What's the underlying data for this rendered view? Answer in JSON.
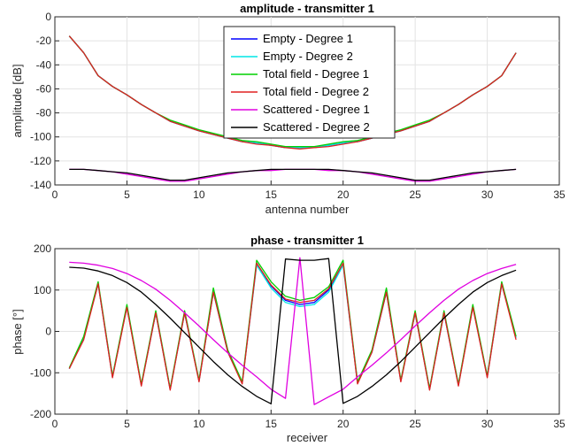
{
  "chart_data": [
    {
      "type": "line",
      "title": "amplitude - transmitter 1",
      "xlabel": "antenna number",
      "ylabel": "amplitude [dB]",
      "xlim": [
        0,
        35
      ],
      "ylim": [
        -140,
        0
      ],
      "xticks": [
        0,
        5,
        10,
        15,
        20,
        25,
        30,
        35
      ],
      "yticks": [
        0,
        -20,
        -40,
        -60,
        -80,
        -100,
        -120,
        -140
      ],
      "grid": true,
      "legend_position": "top-center",
      "x": [
        1,
        2,
        3,
        4,
        5,
        6,
        7,
        8,
        9,
        10,
        11,
        12,
        13,
        14,
        15,
        16,
        17,
        18,
        19,
        20,
        21,
        22,
        23,
        24,
        25,
        26,
        27,
        28,
        29,
        30,
        31,
        32
      ],
      "series": [
        {
          "name": "Empty - Degree 1",
          "color": "#0000ff",
          "values": [
            -16,
            -30,
            -49,
            -58,
            -65,
            -73,
            -80,
            -87,
            -91,
            -95,
            -98,
            -101,
            -104,
            -105,
            -107,
            -109,
            -109,
            -109,
            -107,
            -105,
            -104,
            -101,
            -98,
            -95,
            -91,
            -87,
            -80,
            -73,
            -65,
            -58,
            -49,
            -30
          ]
        },
        {
          "name": "Empty - Degree 2",
          "color": "#00e5e5",
          "values": [
            -16,
            -30,
            -49,
            -58,
            -65,
            -73,
            -80,
            -87,
            -91,
            -95,
            -98,
            -101,
            -104,
            -105,
            -107,
            -109,
            -109,
            -109,
            -107,
            -105,
            -104,
            -101,
            -98,
            -95,
            -91,
            -87,
            -80,
            -73,
            -65,
            -58,
            -49,
            -30
          ]
        },
        {
          "name": "Total field - Degree 1",
          "color": "#00d000",
          "values": [
            -16,
            -30,
            -49,
            -58,
            -65,
            -73,
            -80,
            -86,
            -90,
            -94,
            -97,
            -100,
            -103,
            -104,
            -106,
            -108,
            -108,
            -108,
            -106,
            -104,
            -103,
            -100,
            -97,
            -94,
            -90,
            -86,
            -80,
            -73,
            -65,
            -58,
            -49,
            -30
          ]
        },
        {
          "name": "Total field - Degree 2",
          "color": "#e02020",
          "values": [
            -16,
            -30,
            -49,
            -58,
            -65,
            -73,
            -80,
            -87,
            -91,
            -95,
            -98,
            -101,
            -104,
            -106,
            -107,
            -109,
            -110,
            -109,
            -108,
            -106,
            -104,
            -101,
            -98,
            -95,
            -91,
            -87,
            -80,
            -73,
            -65,
            -58,
            -49,
            -30
          ]
        },
        {
          "name": "Scattered - Degree 1",
          "color": "#e000e0",
          "values": [
            -127,
            -127,
            -128,
            -129,
            -131,
            -133,
            -135,
            -137,
            -137,
            -135,
            -133,
            -131,
            -129,
            -128,
            -128,
            -127,
            -127,
            -127,
            -128,
            -128,
            -129,
            -131,
            -133,
            -135,
            -137,
            -137,
            -135,
            -133,
            -131,
            -129,
            -128,
            -127
          ]
        },
        {
          "name": "Scattered - Degree 2",
          "color": "#000000",
          "values": [
            -127,
            -127,
            -128,
            -129,
            -130,
            -132,
            -134,
            -136,
            -136,
            -134,
            -132,
            -130,
            -129,
            -128,
            -127,
            -127,
            -127,
            -127,
            -127,
            -128,
            -129,
            -130,
            -132,
            -134,
            -136,
            -136,
            -134,
            -132,
            -130,
            -129,
            -128,
            -127
          ]
        }
      ]
    },
    {
      "type": "line",
      "title": "phase - transmitter 1",
      "xlabel": "receiver",
      "ylabel": "phase [°]",
      "xlim": [
        0,
        35
      ],
      "ylim": [
        -200,
        200
      ],
      "xticks": [
        0,
        5,
        10,
        15,
        20,
        25,
        30,
        35
      ],
      "yticks": [
        200,
        100,
        0,
        -100,
        -200
      ],
      "grid": true,
      "x": [
        1,
        2,
        3,
        4,
        5,
        6,
        7,
        8,
        9,
        10,
        11,
        12,
        13,
        14,
        15,
        16,
        17,
        18,
        19,
        20,
        21,
        22,
        23,
        24,
        25,
        26,
        27,
        28,
        29,
        30,
        31,
        32
      ],
      "series": [
        {
          "name": "Empty - Degree 1",
          "color": "#0000ff",
          "values": [
            -90,
            -15,
            115,
            -110,
            60,
            -130,
            45,
            -140,
            45,
            -120,
            95,
            -50,
            -125,
            165,
            110,
            75,
            65,
            70,
            100,
            165,
            -125,
            -50,
            95,
            -120,
            45,
            -140,
            45,
            -130,
            60,
            -110,
            115,
            -15
          ]
        },
        {
          "name": "Empty - Degree 2",
          "color": "#00e5e5",
          "values": [
            -90,
            -15,
            115,
            -110,
            60,
            -130,
            45,
            -140,
            45,
            -120,
            95,
            -50,
            -125,
            160,
            105,
            70,
            60,
            65,
            95,
            160,
            -125,
            -50,
            95,
            -120,
            45,
            -140,
            45,
            -130,
            60,
            -110,
            115,
            -15
          ]
        },
        {
          "name": "Total field - Degree 1",
          "color": "#00d000",
          "values": [
            -88,
            -12,
            120,
            -108,
            65,
            -128,
            50,
            -138,
            50,
            -118,
            105,
            -45,
            -122,
            172,
            120,
            85,
            75,
            82,
            108,
            172,
            -122,
            -45,
            105,
            -118,
            50,
            -138,
            50,
            -128,
            65,
            -108,
            120,
            -12
          ]
        },
        {
          "name": "Total field - Degree 2",
          "color": "#e02020",
          "values": [
            -90,
            -20,
            115,
            -112,
            58,
            -132,
            45,
            -142,
            45,
            -122,
            95,
            -50,
            -127,
            165,
            112,
            78,
            70,
            75,
            103,
            165,
            -127,
            -50,
            95,
            -122,
            45,
            -142,
            45,
            -132,
            58,
            -112,
            115,
            -20
          ]
        },
        {
          "name": "Scattered - Degree 1",
          "color": "#e000e0",
          "values": [
            167,
            165,
            160,
            152,
            140,
            123,
            102,
            75,
            45,
            13,
            -20,
            -52,
            -82,
            -110,
            -140,
            -162,
            178,
            -177,
            -158,
            -140,
            -110,
            -82,
            -52,
            -20,
            13,
            45,
            75,
            102,
            123,
            140,
            152,
            162
          ]
        },
        {
          "name": "Scattered - Degree 2",
          "color": "#000000",
          "values": [
            155,
            153,
            146,
            135,
            118,
            95,
            65,
            32,
            -3,
            -38,
            -73,
            -105,
            -133,
            -157,
            -175,
            175,
            172,
            172,
            176,
            -174,
            -157,
            -133,
            -105,
            -73,
            -38,
            -3,
            32,
            65,
            95,
            118,
            135,
            148
          ]
        }
      ]
    }
  ]
}
